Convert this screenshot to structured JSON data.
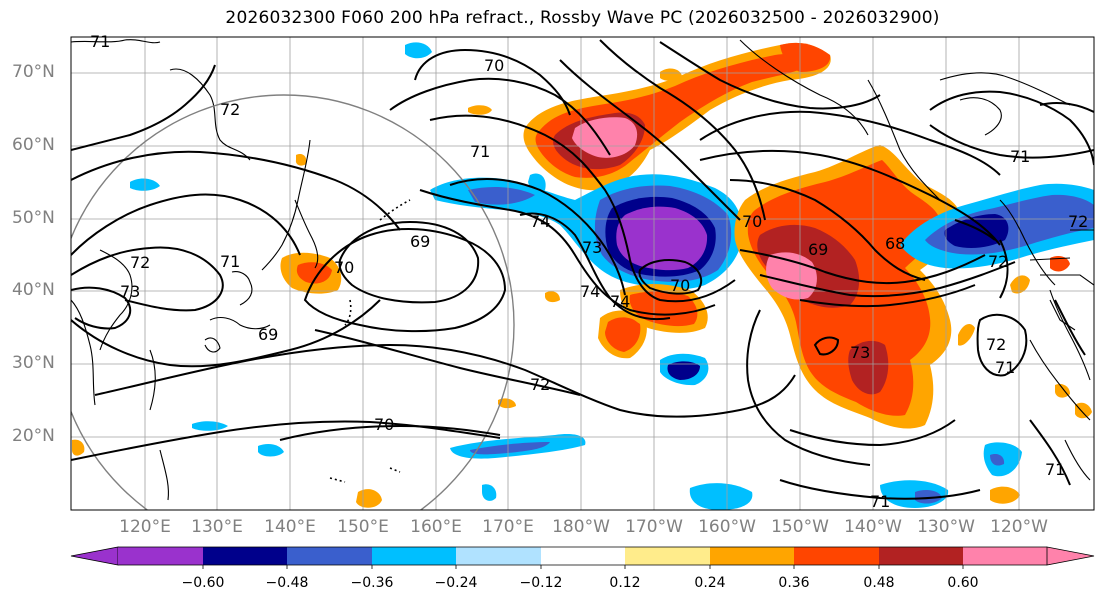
{
  "title": "2026032300 F060 200 hPa refract., Rossby Wave PC (2026032500 - 2026032900)",
  "lat_labels": [
    "70°N",
    "60°N",
    "50°N",
    "40°N",
    "30°N",
    "20°N"
  ],
  "lon_labels": [
    "120°E",
    "130°E",
    "140°E",
    "150°E",
    "160°E",
    "170°E",
    "180°W",
    "170°W",
    "160°W",
    "150°W",
    "140°W",
    "130°W",
    "120°W"
  ],
  "contour_labels": [
    "70",
    "71",
    "72",
    "69",
    "73",
    "74",
    "71",
    "72",
    "69",
    "70",
    "72",
    "74",
    "73",
    "70",
    "74",
    "70",
    "69",
    "68",
    "71",
    "72",
    "73",
    "71",
    "72",
    "71",
    "71",
    "72",
    "70",
    "71"
  ],
  "colorbar": {
    "ticks": [
      "−0.60",
      "−0.48",
      "−0.36",
      "−0.24",
      "−0.12",
      "0.12",
      "0.24",
      "0.36",
      "0.48",
      "0.60"
    ],
    "colors": [
      "#9a32cd",
      "#00008b",
      "#3a5fcd",
      "#00bfff",
      "#b0e2ff",
      "#ffffff",
      "#ffec8b",
      "#ffa500",
      "#ff4500",
      "#b22222",
      "#ff82ab"
    ]
  }
}
